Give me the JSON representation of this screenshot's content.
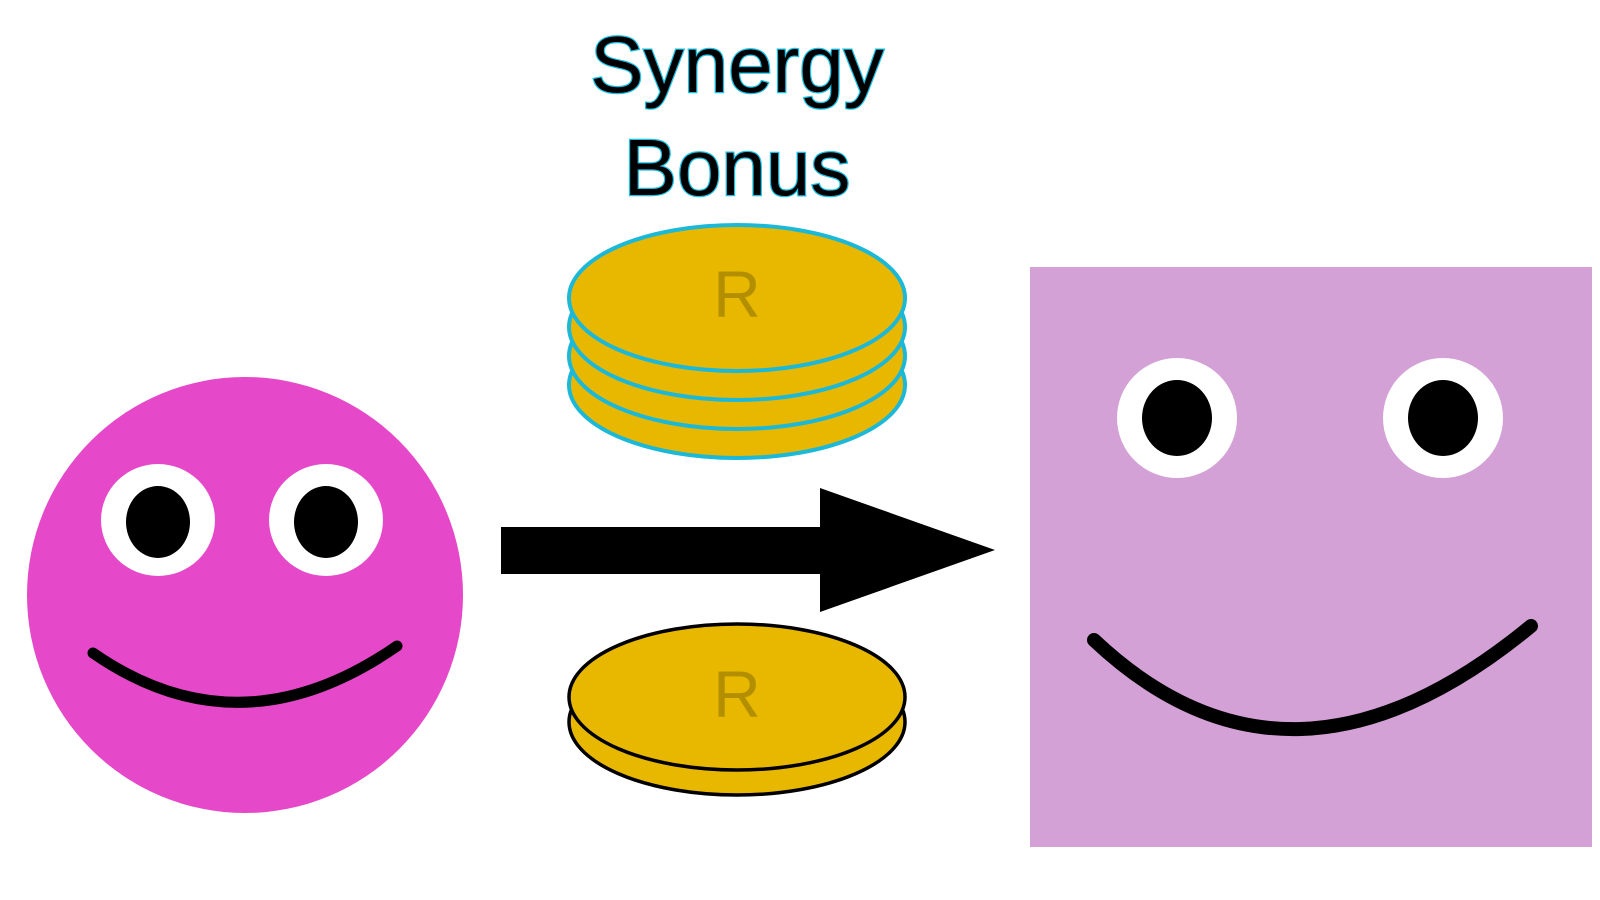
{
  "title": {
    "line1": "Synergy",
    "line2": "Bonus"
  },
  "synergy_coin_stack": {
    "coin_count": 4,
    "coin_letter": "R",
    "coin_fill": "#e8b800",
    "outline_color": "#1cb8d8"
  },
  "base_coin_stack": {
    "coin_count": 2,
    "coin_letter": "R",
    "coin_fill": "#e8b800",
    "outline_color": "#000000"
  },
  "left_character": {
    "shape": "circle",
    "color": "#e548c8"
  },
  "right_character": {
    "shape": "square",
    "color": "#d3a1d6"
  },
  "arrow": {
    "direction": "right",
    "color": "#000000"
  }
}
